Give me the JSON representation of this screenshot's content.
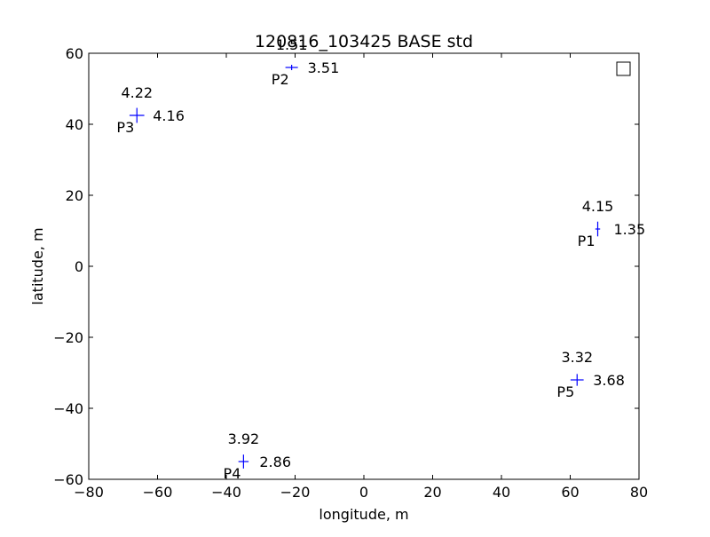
{
  "chart_data": {
    "type": "scatter",
    "title": "120816_103425 BASE std",
    "xlabel": "longitude, m",
    "ylabel": "latitude, m",
    "xlim": [
      -80,
      80
    ],
    "ylim": [
      -60,
      60
    ],
    "xticks": [
      -80,
      -60,
      -40,
      -20,
      0,
      20,
      40,
      60,
      80
    ],
    "yticks": [
      -60,
      -40,
      -20,
      0,
      20,
      40,
      60
    ],
    "xtick_labels": [
      "−80",
      "−60",
      "−40",
      "−20",
      "0",
      "20",
      "40",
      "60",
      "80"
    ],
    "ytick_labels": [
      "−60",
      "−40",
      "−20",
      "0",
      "20",
      "40",
      "60"
    ],
    "grid": false,
    "marker": "+",
    "marker_color": "#0000ff",
    "points": [
      {
        "name": "P1",
        "x": 68,
        "y": 10.5,
        "std_x": 1.35,
        "std_y": 4.15
      },
      {
        "name": "P2",
        "x": -21,
        "y": 56,
        "std_x": 3.51,
        "std_y": 1.51
      },
      {
        "name": "P3",
        "x": -66,
        "y": 42.5,
        "std_x": 4.16,
        "std_y": 4.22
      },
      {
        "name": "P4",
        "x": -35,
        "y": -55,
        "std_x": 2.86,
        "std_y": 3.92
      },
      {
        "name": "P5",
        "x": 62,
        "y": -32,
        "std_x": 3.68,
        "std_y": 3.32
      }
    ],
    "legend_box": "top-right"
  }
}
